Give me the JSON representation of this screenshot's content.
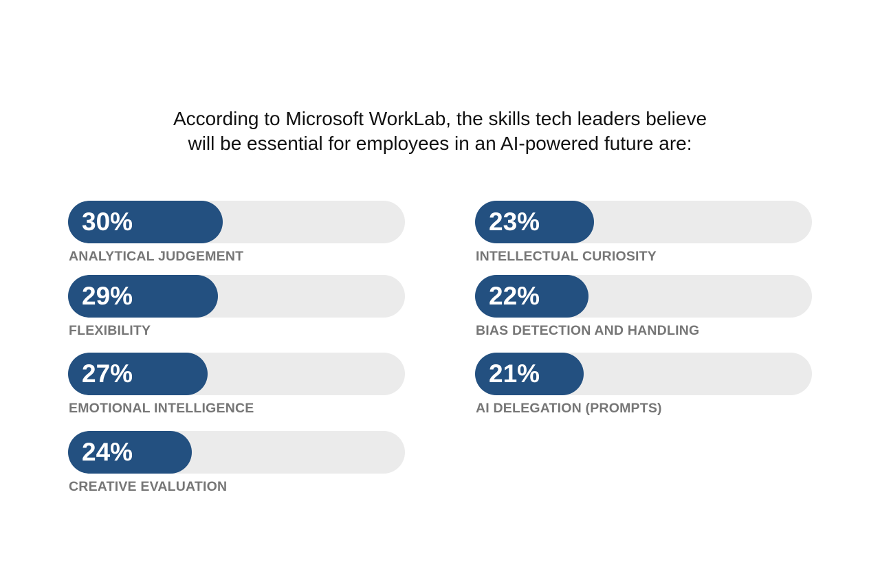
{
  "title": {
    "line1": "According to Microsoft WorkLab, the skills tech leaders believe",
    "line2": "will be essential for employees in an AI-powered future are:"
  },
  "colors": {
    "fill": "#235080",
    "track": "#ebebeb",
    "label": "#767676"
  },
  "chart_data": {
    "type": "bar",
    "orientation": "horizontal",
    "categories": [
      "ANALYTICAL JUDGEMENT",
      "FLEXIBILITY",
      "EMOTIONAL INTELLIGENCE",
      "CREATIVE EVALUATION",
      "INTELLECTUAL CURIOSITY",
      "BIAS DETECTION AND HANDLING",
      "AI DELEGATION (PROMPTS)"
    ],
    "values": [
      30,
      29,
      27,
      24,
      23,
      22,
      21
    ],
    "value_labels": [
      "30%",
      "29%",
      "27%",
      "24%",
      "23%",
      "22%",
      "21%"
    ],
    "unit": "%"
  }
}
